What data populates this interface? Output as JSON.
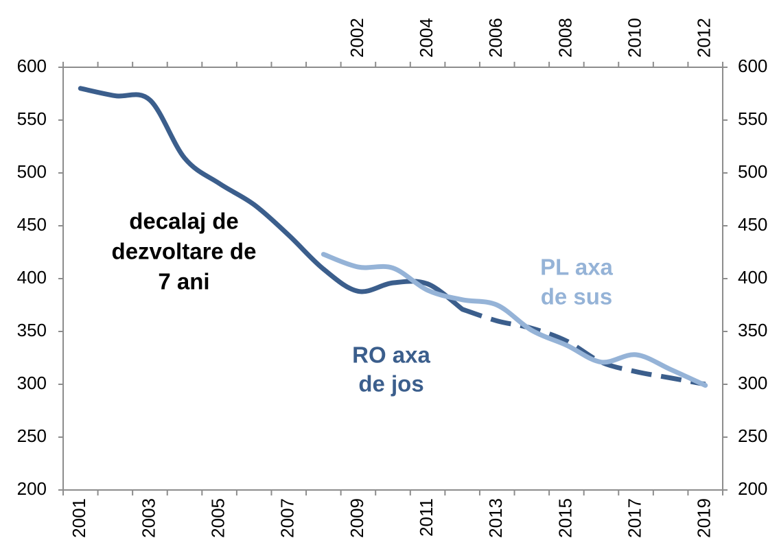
{
  "chart_data": {
    "type": "line",
    "categories": [
      "2001",
      null,
      "2003",
      null,
      "2005",
      null,
      "2007",
      null,
      "2009",
      null,
      "2011",
      null,
      "2013",
      null,
      "2015",
      null,
      "2017",
      null,
      "2019"
    ],
    "x2categories": [
      null,
      null,
      null,
      null,
      null,
      null,
      null,
      null,
      "2002",
      null,
      "2004",
      null,
      "2006",
      null,
      "2008",
      null,
      "2010",
      null,
      "2012"
    ],
    "series": [
      {
        "color": "#3b5e8c",
        "axis": "x",
        "dash_from_index": 11,
        "values": [
          580,
          573,
          569,
          514,
          490,
          470,
          441,
          409,
          388,
          396,
          395,
          371,
          360,
          353,
          341,
          321,
          312,
          306,
          300
        ]
      },
      {
        "color": "#95b3d7",
        "axis": "x2",
        "values": [
          null,
          null,
          null,
          null,
          null,
          null,
          null,
          423,
          411,
          410,
          389,
          380,
          375,
          351,
          337,
          321,
          328,
          314,
          299
        ]
      }
    ],
    "ylim": [
      200,
      600
    ],
    "yticks": [
      200,
      250,
      300,
      350,
      400,
      450,
      500,
      550,
      600
    ],
    "y2lim": [
      200,
      600
    ],
    "y2ticks": [
      200,
      250,
      300,
      350,
      400,
      450,
      500,
      550,
      600
    ],
    "annotations": [
      {
        "lines": [
          "decalaj de",
          "dezvoltare de",
          "7 ani"
        ],
        "color": "#000000"
      },
      {
        "lines": [
          "RO axa",
          "de jos"
        ],
        "color": "#3b5e8c"
      },
      {
        "lines": [
          "PL axa",
          "de sus"
        ],
        "color": "#95b3d7"
      }
    ]
  }
}
